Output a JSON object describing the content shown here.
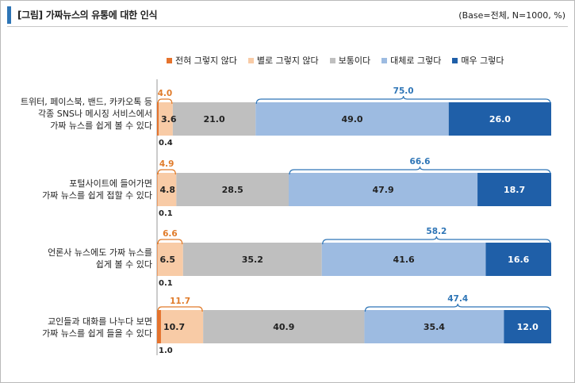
{
  "header": {
    "title": "[그림] 가짜뉴스의 유통에 대한 인식",
    "base_note": "(Base=전체, N=1000, %)"
  },
  "colors": {
    "accent": "#2e75b6",
    "not_at_all": "#e5732d",
    "not_really": "#f8cba6",
    "neutral": "#bfbfbf",
    "somewhat": "#9dbbe1",
    "very": "#1f5fa8",
    "neg_brace": "#e07b2a",
    "pos_brace": "#2e75b6"
  },
  "legend": [
    {
      "label": "전혀 그렇지 않다",
      "color": "#e5732d"
    },
    {
      "label": "별로 그렇지 않다",
      "color": "#f8cba6"
    },
    {
      "label": "보통이다",
      "color": "#bfbfbf"
    },
    {
      "label": "대체로 그렇다",
      "color": "#9dbbe1"
    },
    {
      "label": "매우 그렇다",
      "color": "#1f5fa8"
    }
  ],
  "chart_data": {
    "type": "bar",
    "orientation": "horizontal-stacked-100",
    "categories": [
      "트위터, 페이스북, 밴드, 카카오톡 등\n각종 SNS나 메시징 서비스에서\n가짜 뉴스를 쉽게 볼 수 있다",
      "포털사이트에 들어가면\n가짜 뉴스를 쉽게 접할 수 있다",
      "언론사 뉴스에도 가짜 뉴스를\n쉽게 볼 수 있다",
      "교인들과 대화를 나누다 보면\n가짜 뉴스를 쉽게 들을 수 있다"
    ],
    "series": [
      {
        "name": "전혀 그렇지 않다",
        "values": [
          0.4,
          0.1,
          0.1,
          1.0
        ]
      },
      {
        "name": "별로 그렇지 않다",
        "values": [
          3.6,
          4.8,
          6.5,
          10.7
        ]
      },
      {
        "name": "보통이다",
        "values": [
          21.0,
          28.5,
          35.2,
          40.9
        ]
      },
      {
        "name": "대체로 그렇다",
        "values": [
          49.0,
          47.9,
          41.6,
          35.4
        ]
      },
      {
        "name": "매우 그렇다",
        "values": [
          26.0,
          18.7,
          16.6,
          12.0
        ]
      }
    ],
    "value_labels": [
      [
        "0.4",
        "3.6",
        "21.0",
        "49.0",
        "26.0"
      ],
      [
        "0.1",
        "4.8",
        "28.5",
        "47.9",
        "18.7"
      ],
      [
        "0.1",
        "6.5",
        "35.2",
        "41.6",
        "16.6"
      ],
      [
        "1.0",
        "10.7",
        "40.9",
        "35.4",
        "12.0"
      ]
    ],
    "negative_totals": [
      "4.0",
      "4.9",
      "6.6",
      "11.7"
    ],
    "positive_totals": [
      "75.0",
      "66.6",
      "58.2",
      "47.4"
    ],
    "xlim": [
      0,
      100
    ],
    "grid": false,
    "legend_position": "top"
  }
}
